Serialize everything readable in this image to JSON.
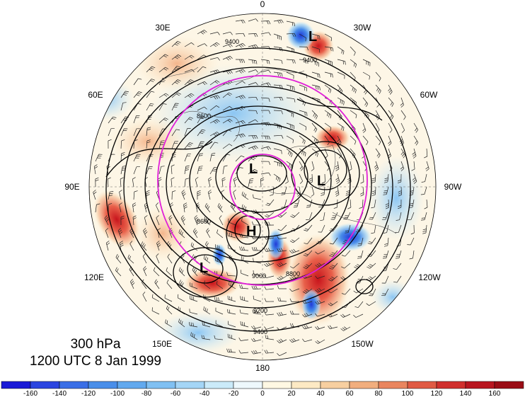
{
  "title": {
    "level": "300 hPa",
    "valid_time": "1200 UTC 8 Jan 1999"
  },
  "longitude_labels": [
    {
      "key": "0",
      "text": "0"
    },
    {
      "key": "30W",
      "text": "30W"
    },
    {
      "key": "60W",
      "text": "60W"
    },
    {
      "key": "90W",
      "text": "90W"
    },
    {
      "key": "120W",
      "text": "120W"
    },
    {
      "key": "150W",
      "text": "150W"
    },
    {
      "key": "180",
      "text": "180"
    },
    {
      "key": "150E",
      "text": "150E"
    },
    {
      "key": "120E",
      "text": "120E"
    },
    {
      "key": "90E",
      "text": "90E"
    },
    {
      "key": "60E",
      "text": "60E"
    },
    {
      "key": "30E",
      "text": "30E"
    }
  ],
  "pressure_centers": [
    {
      "type": "L",
      "location": "near pole"
    },
    {
      "type": "L",
      "location": "Canadian Arctic"
    },
    {
      "type": "L",
      "location": "North Atlantic"
    },
    {
      "type": "H",
      "location": "Siberia"
    },
    {
      "type": "L",
      "location": "East Asia"
    }
  ],
  "contour_labels": [
    "9400",
    "9000",
    "8600",
    "9200",
    "8800"
  ],
  "colorbar": {
    "ticks": [
      "-160",
      "-140",
      "-120",
      "-100",
      "-80",
      "-60",
      "-40",
      "-20",
      "0",
      "20",
      "40",
      "60",
      "80",
      "100",
      "120",
      "140",
      "160"
    ],
    "colors": [
      "#1a1ad6",
      "#2b45e0",
      "#3a6ee6",
      "#4a8ee9",
      "#62a9ee",
      "#80c0f2",
      "#a4d5f6",
      "#cbeaf9",
      "#eef8fc",
      "#fff8e3",
      "#fde9c4",
      "#f7cfa0",
      "#f1ae7e",
      "#e9855f",
      "#e05a44",
      "#d0302e",
      "#b81620",
      "#9a0d16"
    ]
  },
  "colors": {
    "reference_circles": "#e020d8",
    "contours": "#000000"
  }
}
